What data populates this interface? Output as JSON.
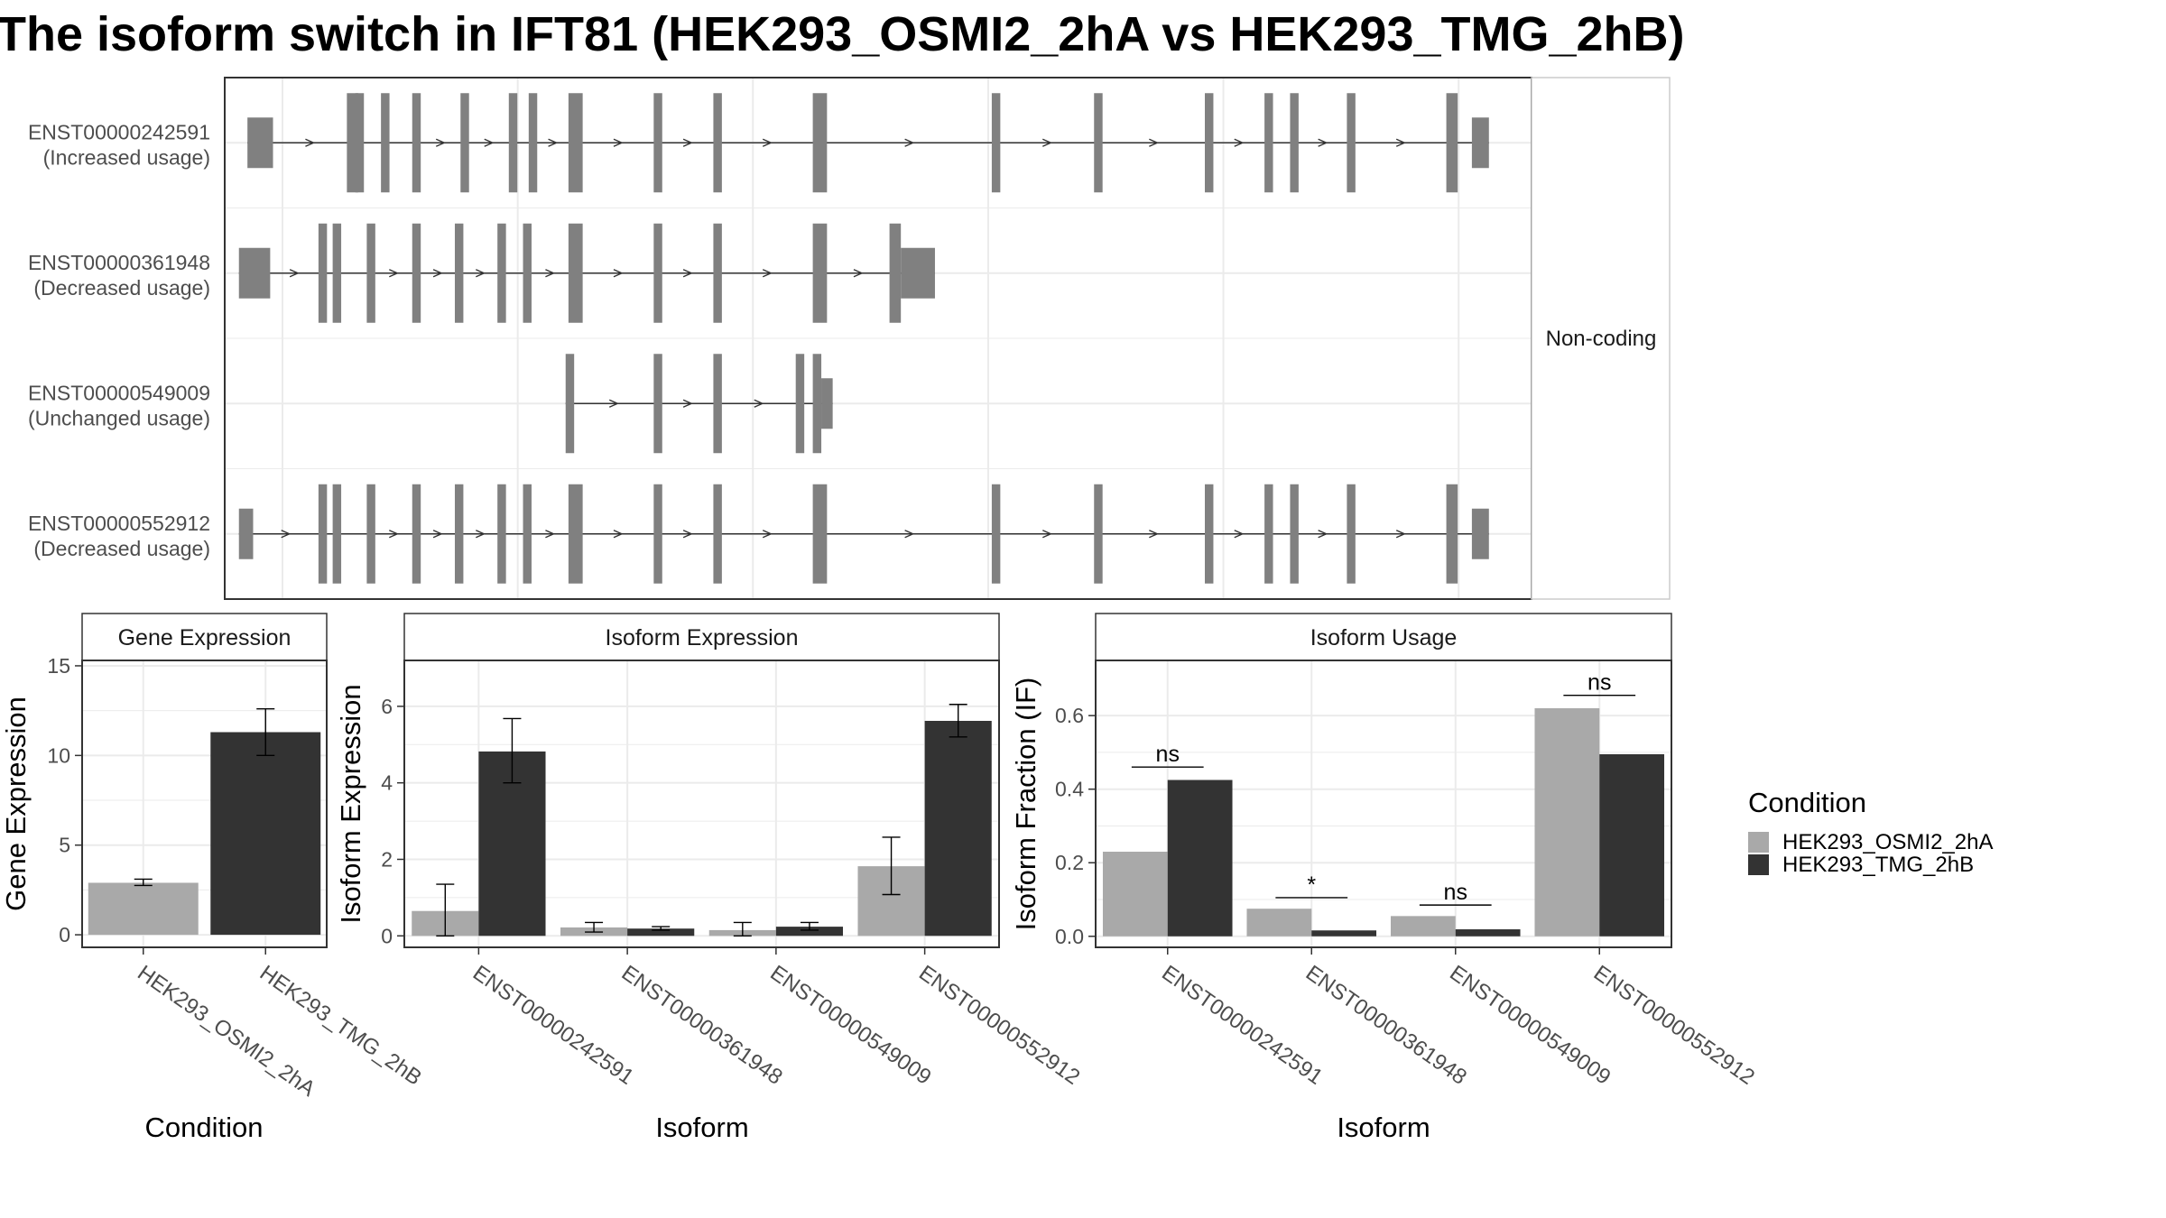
{
  "title": "The isoform switch in IFT81 (HEK293_OSMI2_2hA vs HEK293_TMG_2hB)",
  "colors": {
    "exon": "#808080",
    "intron": "#333333",
    "condA": "#a9a9a9",
    "condB": "#333333",
    "grid": "#ebebeb",
    "strip": "#ffffff",
    "panel_border": "#333333"
  },
  "structure_panel": {
    "strip_label": "Non-coding",
    "transcripts": [
      {
        "id": "ENST00000242591",
        "usage": "(Increased usage)",
        "exons": [
          [
            11.3,
            12.2,
            "utr"
          ],
          [
            14.8,
            15.2,
            "cds"
          ],
          [
            15.1,
            15.4,
            "cds"
          ],
          [
            16.0,
            16.3,
            "cds"
          ],
          [
            17.1,
            17.4,
            "cds"
          ],
          [
            18.8,
            19.1,
            "cds"
          ],
          [
            20.5,
            20.8,
            "cds"
          ],
          [
            21.2,
            21.5,
            "cds"
          ],
          [
            22.6,
            23.1,
            "cds"
          ],
          [
            25.6,
            25.9,
            "cds"
          ],
          [
            27.7,
            28.0,
            "cds"
          ],
          [
            31.2,
            31.7,
            "cds"
          ],
          [
            37.5,
            37.8,
            "cds"
          ],
          [
            41.1,
            41.4,
            "cds"
          ],
          [
            45.0,
            45.3,
            "cds"
          ],
          [
            47.1,
            47.4,
            "cds"
          ],
          [
            48.0,
            48.3,
            "cds"
          ],
          [
            50.0,
            50.3,
            "cds"
          ],
          [
            53.5,
            53.9,
            "cds"
          ],
          [
            54.4,
            55.0,
            "utr"
          ]
        ]
      },
      {
        "id": "ENST00000361948",
        "usage": "(Decreased usage)",
        "exons": [
          [
            11.0,
            12.1,
            "utr"
          ],
          [
            13.8,
            14.1,
            "cds"
          ],
          [
            14.3,
            14.6,
            "cds"
          ],
          [
            15.5,
            15.8,
            "cds"
          ],
          [
            17.1,
            17.4,
            "cds"
          ],
          [
            18.6,
            18.9,
            "cds"
          ],
          [
            20.1,
            20.4,
            "cds"
          ],
          [
            21.0,
            21.3,
            "cds"
          ],
          [
            22.6,
            23.1,
            "cds"
          ],
          [
            25.6,
            25.9,
            "cds"
          ],
          [
            27.7,
            28.0,
            "cds"
          ],
          [
            31.2,
            31.7,
            "cds"
          ],
          [
            33.9,
            34.3,
            "cds"
          ],
          [
            34.3,
            35.5,
            "utr"
          ]
        ]
      },
      {
        "id": "ENST00000549009",
        "usage": "(Unchanged usage)",
        "exons": [
          [
            22.5,
            22.8,
            "cds"
          ],
          [
            25.6,
            25.9,
            "cds"
          ],
          [
            27.7,
            28.0,
            "cds"
          ],
          [
            30.6,
            30.9,
            "cds"
          ],
          [
            31.2,
            31.5,
            "cds"
          ],
          [
            31.5,
            31.9,
            "utr"
          ]
        ]
      },
      {
        "id": "ENST00000552912",
        "usage": "(Decreased usage)",
        "exons": [
          [
            11.0,
            11.5,
            "utr"
          ],
          [
            13.8,
            14.1,
            "cds"
          ],
          [
            14.3,
            14.6,
            "cds"
          ],
          [
            15.5,
            15.8,
            "cds"
          ],
          [
            17.1,
            17.4,
            "cds"
          ],
          [
            18.6,
            18.9,
            "cds"
          ],
          [
            20.1,
            20.4,
            "cds"
          ],
          [
            21.0,
            21.3,
            "cds"
          ],
          [
            22.6,
            23.1,
            "cds"
          ],
          [
            25.6,
            25.9,
            "cds"
          ],
          [
            27.7,
            28.0,
            "cds"
          ],
          [
            31.2,
            31.7,
            "cds"
          ],
          [
            37.5,
            37.8,
            "cds"
          ],
          [
            41.1,
            41.4,
            "cds"
          ],
          [
            45.0,
            45.3,
            "cds"
          ],
          [
            47.1,
            47.4,
            "cds"
          ],
          [
            48.0,
            48.3,
            "cds"
          ],
          [
            50.0,
            50.3,
            "cds"
          ],
          [
            53.5,
            53.9,
            "cds"
          ],
          [
            54.4,
            55.0,
            "utr"
          ]
        ]
      }
    ]
  },
  "chart_data": [
    {
      "type": "bar",
      "title": "Gene Expression",
      "xlabel": "Condition",
      "ylabel": "Gene Expression",
      "ylim": [
        -0.7,
        15.3
      ],
      "yticks": [
        0,
        5,
        10,
        15
      ],
      "categories": [
        "HEK293_OSMI2_2hA",
        "HEK293_TMG_2hB"
      ],
      "values": [
        2.9,
        11.3
      ],
      "errors": [
        [
          2.75,
          3.1
        ],
        [
          10.0,
          12.6
        ]
      ],
      "fills": [
        "#a9a9a9",
        "#333333"
      ],
      "grid": true
    },
    {
      "type": "bar",
      "title": "Isoform Expression",
      "xlabel": "Isoform",
      "ylabel": "Isoform Expression",
      "ylim": [
        -0.3,
        7.2
      ],
      "yticks": [
        0,
        2,
        4,
        6
      ],
      "categories": [
        "ENST00000242591",
        "ENST00000361948",
        "ENST00000549009",
        "ENST00000552912"
      ],
      "series": [
        {
          "name": "HEK293_OSMI2_2hA",
          "values": [
            0.65,
            0.22,
            0.15,
            1.82
          ],
          "errors": [
            [
              0.0,
              1.35
            ],
            [
              0.1,
              0.35
            ],
            [
              0.0,
              0.35
            ],
            [
              1.08,
              2.58
            ]
          ]
        },
        {
          "name": "HEK293_TMG_2hB",
          "values": [
            4.82,
            0.19,
            0.24,
            5.62
          ],
          "errors": [
            [
              4.0,
              5.68
            ],
            [
              0.15,
              0.24
            ],
            [
              0.15,
              0.35
            ],
            [
              5.2,
              6.05
            ]
          ]
        }
      ],
      "grid": true
    },
    {
      "type": "bar",
      "title": "Isoform Usage",
      "xlabel": "Isoform",
      "ylabel": "Isoform Fraction (IF)",
      "ylim": [
        -0.03,
        0.75
      ],
      "yticks": [
        0.0,
        0.2,
        0.4,
        0.6
      ],
      "ytick_labels": [
        "0.0",
        "0.2",
        "0.4",
        "0.6"
      ],
      "categories": [
        "ENST00000242591",
        "ENST00000361948",
        "ENST00000549009",
        "ENST00000552912"
      ],
      "series": [
        {
          "name": "HEK293_OSMI2_2hA",
          "values": [
            0.23,
            0.075,
            0.055,
            0.62
          ]
        },
        {
          "name": "HEK293_TMG_2hB",
          "values": [
            0.425,
            0.016,
            0.019,
            0.495
          ]
        }
      ],
      "significance": [
        {
          "label": "ns",
          "y": 0.46
        },
        {
          "label": "*",
          "y": 0.105
        },
        {
          "label": "ns",
          "y": 0.085
        },
        {
          "label": "ns",
          "y": 0.655
        }
      ],
      "grid": true
    }
  ],
  "legend": {
    "title": "Condition",
    "placement": "right",
    "items": [
      {
        "label": "HEK293_OSMI2_2hA",
        "color": "#a9a9a9"
      },
      {
        "label": "HEK293_TMG_2hB",
        "color": "#333333"
      }
    ]
  }
}
